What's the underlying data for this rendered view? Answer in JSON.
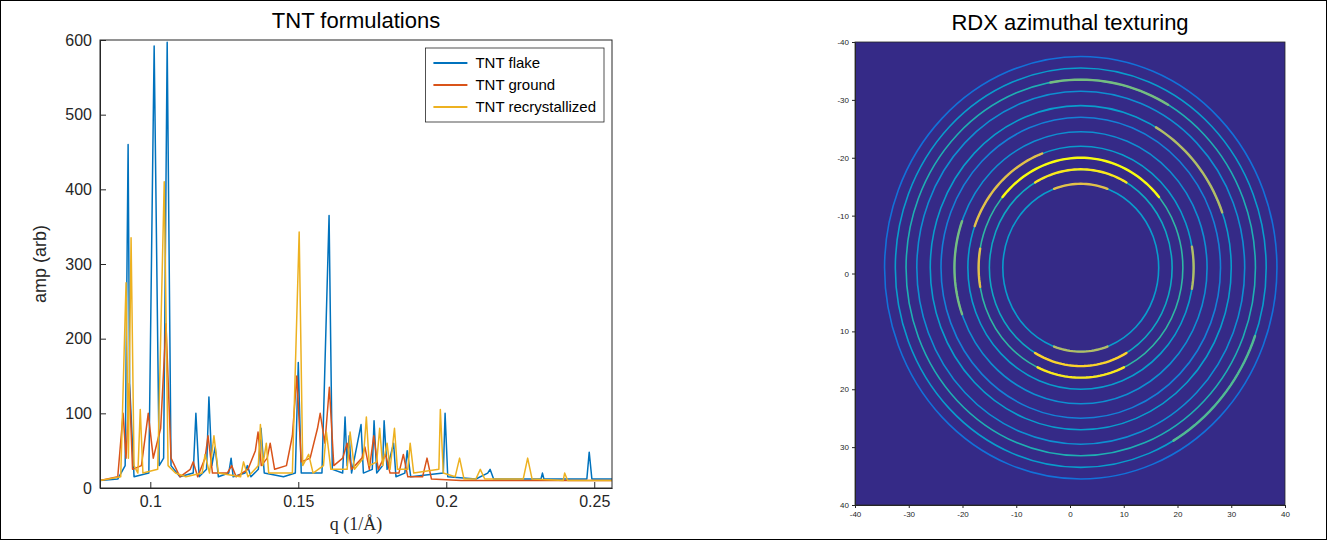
{
  "chart_data": [
    {
      "type": "line",
      "title": "TNT formulations",
      "x_label": "q (1/Å)",
      "y_label": "amp (arb)",
      "xlim": [
        0.083,
        0.256
      ],
      "xticks": [
        0.1,
        0.15,
        0.2,
        0.25
      ],
      "ylim": [
        0,
        600
      ],
      "yticks": [
        0,
        100,
        200,
        300,
        400,
        500,
        600
      ],
      "grid": false,
      "legend": "northeast",
      "series": [
        {
          "name": "TNT flake",
          "color": "#0072bd",
          "x": [
            0.083,
            0.089,
            0.0915,
            0.0925,
            0.093,
            0.0945,
            0.0995,
            0.1013,
            0.103,
            0.1045,
            0.1057,
            0.107,
            0.11,
            0.1145,
            0.1154,
            0.1165,
            0.119,
            0.1198,
            0.1208,
            0.1219,
            0.123,
            0.1265,
            0.1273,
            0.128,
            0.132,
            0.1328,
            0.134,
            0.1365,
            0.1374,
            0.1385,
            0.145,
            0.149,
            0.15,
            0.151,
            0.158,
            0.1604,
            0.1615,
            0.165,
            0.1658,
            0.1665,
            0.1672,
            0.168,
            0.1712,
            0.172,
            0.175,
            0.1756,
            0.1765,
            0.1785,
            0.179,
            0.18,
            0.1822,
            0.183,
            0.186,
            0.1868,
            0.188,
            0.199,
            0.1996,
            0.2005,
            0.21,
            0.214,
            0.2148,
            0.216,
            0.232,
            0.2325,
            0.233,
            0.2475,
            0.2483,
            0.2492,
            0.256
          ],
          "values": [
            10,
            12,
            30,
            460,
            140,
            15,
            20,
            592,
            30,
            40,
            597,
            30,
            15,
            20,
            100,
            15,
            25,
            122,
            30,
            55,
            15,
            20,
            40,
            15,
            20,
            30,
            15,
            25,
            80,
            20,
            15,
            20,
            168,
            20,
            20,
            365,
            25,
            20,
            95,
            30,
            70,
            20,
            85,
            20,
            25,
            90,
            20,
            30,
            90,
            25,
            60,
            15,
            20,
            50,
            15,
            20,
            100,
            15,
            12,
            20,
            25,
            12,
            12,
            20,
            12,
            12,
            48,
            12,
            12
          ]
        },
        {
          "name": "TNT ground",
          "color": "#d95319",
          "x": [
            0.083,
            0.089,
            0.0908,
            0.0918,
            0.0929,
            0.094,
            0.097,
            0.0993,
            0.101,
            0.1035,
            0.1053,
            0.107,
            0.11,
            0.1135,
            0.1145,
            0.116,
            0.1185,
            0.1195,
            0.121,
            0.126,
            0.1275,
            0.129,
            0.133,
            0.1355,
            0.1364,
            0.1375,
            0.1395,
            0.1405,
            0.142,
            0.146,
            0.148,
            0.1495,
            0.151,
            0.154,
            0.1565,
            0.1574,
            0.159,
            0.1605,
            0.162,
            0.165,
            0.1665,
            0.168,
            0.1715,
            0.1725,
            0.174,
            0.1755,
            0.177,
            0.1795,
            0.181,
            0.184,
            0.1855,
            0.187,
            0.192,
            0.1935,
            0.195,
            0.205,
            0.215,
            0.228,
            0.256
          ],
          "values": [
            10,
            15,
            100,
            40,
            140,
            25,
            30,
            100,
            40,
            80,
            220,
            40,
            15,
            25,
            35,
            15,
            40,
            70,
            20,
            20,
            30,
            15,
            25,
            50,
            75,
            30,
            40,
            60,
            25,
            30,
            70,
            150,
            35,
            40,
            80,
            100,
            60,
            135,
            30,
            40,
            60,
            25,
            40,
            55,
            25,
            70,
            25,
            45,
            20,
            20,
            45,
            15,
            15,
            40,
            12,
            10,
            10,
            10,
            10
          ]
        },
        {
          "name": "TNT recrystallized",
          "color": "#edb120",
          "x": [
            0.083,
            0.09,
            0.0918,
            0.0926,
            0.0935,
            0.0945,
            0.0958,
            0.0966,
            0.0975,
            0.1025,
            0.1047,
            0.106,
            0.1085,
            0.112,
            0.1175,
            0.1185,
            0.12,
            0.1215,
            0.123,
            0.1305,
            0.1315,
            0.133,
            0.1365,
            0.1372,
            0.138,
            0.1392,
            0.14,
            0.148,
            0.1503,
            0.1515,
            0.1535,
            0.155,
            0.1585,
            0.1595,
            0.161,
            0.1665,
            0.1675,
            0.169,
            0.172,
            0.173,
            0.174,
            0.1765,
            0.1775,
            0.1785,
            0.18,
            0.181,
            0.1825,
            0.1835,
            0.187,
            0.1878,
            0.189,
            0.1975,
            0.198,
            0.199,
            0.203,
            0.2045,
            0.206,
            0.21,
            0.2115,
            0.213,
            0.226,
            0.2275,
            0.229,
            0.2395,
            0.24,
            0.241,
            0.256
          ],
          "values": [
            10,
            15,
            275,
            40,
            335,
            30,
            20,
            105,
            20,
            25,
            410,
            30,
            20,
            15,
            20,
            45,
            20,
            70,
            20,
            15,
            35,
            15,
            30,
            85,
            30,
            60,
            20,
            20,
            343,
            30,
            45,
            20,
            30,
            75,
            25,
            25,
            75,
            25,
            40,
            95,
            30,
            35,
            80,
            30,
            60,
            25,
            80,
            25,
            25,
            60,
            20,
            25,
            105,
            20,
            15,
            40,
            12,
            12,
            25,
            12,
            12,
            40,
            12,
            10,
            20,
            10,
            10
          ]
        }
      ]
    },
    {
      "type": "ring_image",
      "title": "RDX azimuthal texturing",
      "xlim": [
        -40,
        40
      ],
      "xticks": [
        -40,
        -30,
        -20,
        -10,
        0,
        10,
        20,
        30,
        40
      ],
      "ylim": [
        40,
        -40
      ],
      "yticks": [
        -40,
        -30,
        -20,
        -10,
        0,
        10,
        20,
        30,
        40
      ],
      "center": [
        2,
        -1
      ],
      "color_range": [
        0,
        1
      ],
      "rings": [
        {
          "radius": 14.5,
          "intensity": 0.35,
          "arcs": [
            {
              "from": 250,
              "to": 290,
              "intensity": 0.8
            },
            {
              "from": 70,
              "to": 110,
              "intensity": 0.7
            }
          ]
        },
        {
          "radius": 17,
          "intensity": 0.4,
          "arcs": [
            {
              "from": 240,
              "to": 300,
              "intensity": 0.95
            },
            {
              "from": 60,
              "to": 120,
              "intensity": 0.9
            }
          ]
        },
        {
          "radius": 19,
          "intensity": 0.5,
          "arcs": [
            {
              "from": 220,
              "to": 320,
              "intensity": 1
            },
            {
              "from": 65,
              "to": 115,
              "intensity": 0.95
            },
            {
              "from": 170,
              "to": 190,
              "intensity": 0.8
            }
          ]
        },
        {
          "radius": 21,
          "intensity": 0.35,
          "arcs": [
            {
              "from": 200,
              "to": 250,
              "intensity": 0.8
            },
            {
              "from": 350,
              "to": 10,
              "intensity": 0.7
            }
          ]
        },
        {
          "radius": 23.5,
          "intensity": 0.3,
          "arcs": [
            {
              "from": 160,
              "to": 200,
              "intensity": 0.6
            }
          ]
        },
        {
          "radius": 26,
          "intensity": 0.25,
          "arcs": []
        },
        {
          "radius": 28,
          "intensity": 0.35,
          "arcs": [
            {
              "from": 300,
              "to": 340,
              "intensity": 0.7
            }
          ]
        },
        {
          "radius": 30.5,
          "intensity": 0.3,
          "arcs": []
        },
        {
          "radius": 32.5,
          "intensity": 0.45,
          "arcs": [
            {
              "from": 260,
              "to": 300,
              "intensity": 0.6
            }
          ]
        },
        {
          "radius": 34.5,
          "intensity": 0.35,
          "arcs": [
            {
              "from": 20,
              "to": 60,
              "intensity": 0.55
            }
          ]
        },
        {
          "radius": 36.5,
          "intensity": 0.2,
          "arcs": []
        }
      ]
    }
  ]
}
